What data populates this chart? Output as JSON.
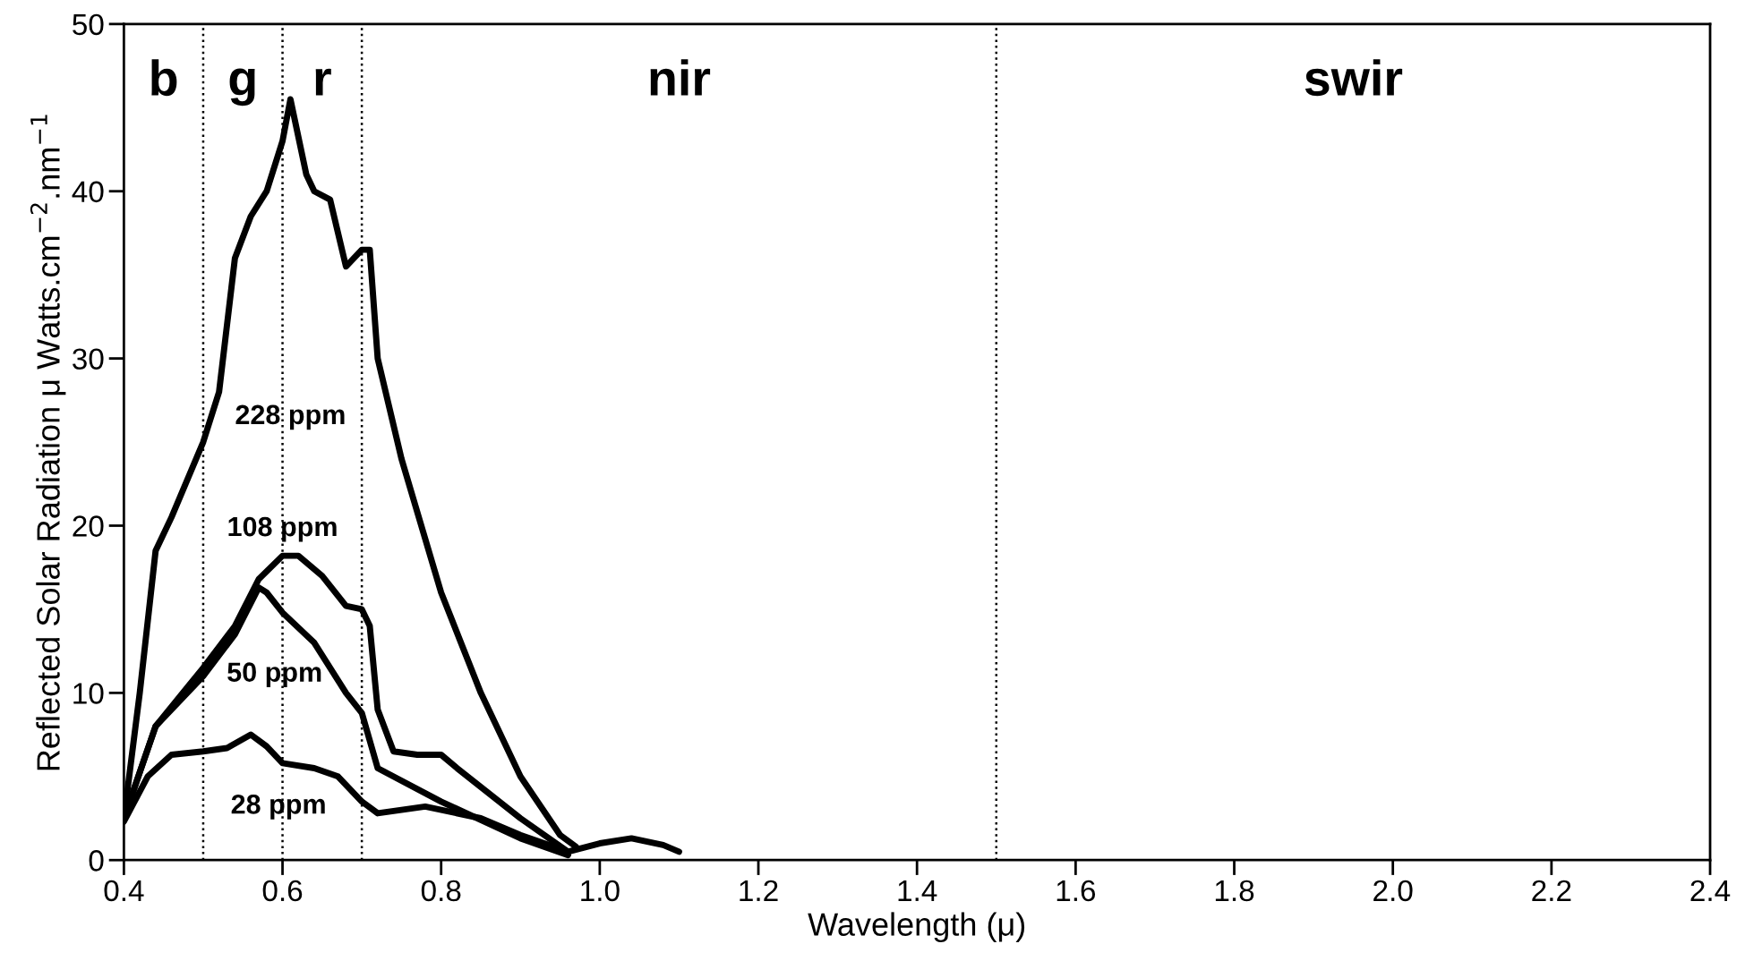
{
  "chart_data": {
    "type": "line",
    "xlabel": "Wavelength (μ)",
    "ylabel": "Reflected Solar Radiation μ Watts.cm$^{−2}$.nm$^{−1}$",
    "series": [
      {
        "name": "228 ppm",
        "color": "#000000",
        "x": [
          0.4,
          0.42,
          0.44,
          0.46,
          0.5,
          0.52,
          0.54,
          0.56,
          0.58,
          0.6,
          0.61,
          0.63,
          0.64,
          0.66,
          0.68,
          0.7,
          0.71,
          0.72,
          0.75,
          0.8,
          0.85,
          0.9,
          0.95,
          0.97
        ],
        "values": [
          2.5,
          10,
          18.5,
          20.5,
          25,
          28,
          36,
          38.5,
          40,
          43,
          45.5,
          41,
          40,
          39.5,
          35.5,
          36.5,
          36.5,
          30,
          24,
          16,
          10,
          5,
          1.5,
          0.8
        ]
      },
      {
        "name": "108 ppm",
        "color": "#000000",
        "x": [
          0.4,
          0.44,
          0.5,
          0.54,
          0.57,
          0.6,
          0.62,
          0.65,
          0.68,
          0.7,
          0.71,
          0.72,
          0.74,
          0.77,
          0.8,
          0.82,
          0.9,
          0.96
        ],
        "values": [
          2.5,
          8,
          11.5,
          14,
          16.8,
          18.2,
          18.2,
          17,
          15.2,
          15,
          14,
          9,
          6.5,
          6.3,
          6.3,
          5.5,
          2.5,
          0.5
        ]
      },
      {
        "name": "50 ppm",
        "color": "#000000",
        "x": [
          0.4,
          0.44,
          0.5,
          0.54,
          0.57,
          0.58,
          0.6,
          0.64,
          0.68,
          0.7,
          0.72,
          0.8,
          0.9,
          0.96
        ],
        "values": [
          2.5,
          8,
          11,
          13.5,
          16.3,
          16,
          14.8,
          13,
          10,
          8.8,
          5.5,
          3.5,
          1.3,
          0.3
        ]
      },
      {
        "name": "28 ppm",
        "color": "#000000",
        "x": [
          0.4,
          0.43,
          0.46,
          0.5,
          0.53,
          0.56,
          0.58,
          0.6,
          0.64,
          0.67,
          0.7,
          0.72,
          0.78,
          0.85,
          0.9,
          0.96,
          1.0,
          1.04,
          1.08,
          1.1
        ],
        "values": [
          2.3,
          5,
          6.3,
          6.5,
          6.7,
          7.5,
          6.8,
          5.8,
          5.5,
          5,
          3.5,
          2.8,
          3.2,
          2.5,
          1.5,
          0.5,
          1.0,
          1.3,
          0.9,
          0.5
        ]
      }
    ],
    "annotations": [
      "b",
      "g",
      "r",
      "nir",
      "swir"
    ],
    "ref_lines": [
      {
        "axis": "x",
        "value": 0.5,
        "color": "#000000",
        "line_style": "dotted"
      },
      {
        "axis": "x",
        "value": 0.6,
        "color": "#000000",
        "line_style": "dotted"
      },
      {
        "axis": "x",
        "value": 0.7,
        "color": "#000000",
        "line_style": "dotted"
      },
      {
        "axis": "x",
        "value": 1.5,
        "color": "#000000",
        "line_style": "dotted"
      }
    ],
    "xlim": [
      0.4,
      2.4
    ],
    "xticks": [
      0.4,
      0.6,
      0.8,
      {
        "value": 1.0,
        "label": "1.0"
      },
      1.2,
      1.4,
      1.6,
      1.8,
      {
        "value": 2.0,
        "label": "2.0"
      },
      2.2,
      2.4
    ],
    "ylim": [
      0,
      50
    ],
    "yticks": [
      0,
      10,
      20,
      30,
      40,
      50
    ],
    "grid": false,
    "legend": false,
    "marker": "none",
    "line_style": "solid"
  }
}
